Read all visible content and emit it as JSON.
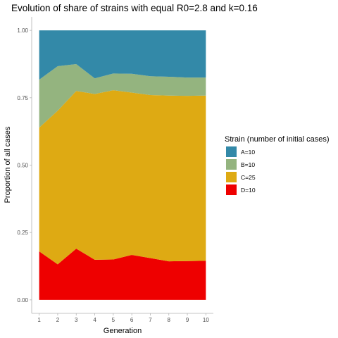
{
  "chart_data": {
    "type": "area",
    "stacked": true,
    "normalized": true,
    "title": "Evolution of share of strains with equal R0=2.8 and k=0.16",
    "xlabel": "Generation",
    "ylabel": "Proportion of all cases",
    "x": [
      1,
      2,
      3,
      4,
      5,
      6,
      7,
      8,
      9,
      10
    ],
    "xlim": [
      1,
      10
    ],
    "ylim": [
      0,
      1
    ],
    "y_ticks": [
      "0.00",
      "0.25",
      "0.50",
      "0.75",
      "1.00"
    ],
    "x_ticks": [
      "1",
      "2",
      "3",
      "4",
      "5",
      "6",
      "7",
      "8",
      "9",
      "10"
    ],
    "grid": false,
    "legend": {
      "title": "Strain (number of initial cases)",
      "position": "right"
    },
    "series": [
      {
        "name": "A=10",
        "color": "#3389a8",
        "values": [
          0.183,
          0.133,
          0.125,
          0.178,
          0.16,
          0.161,
          0.17,
          0.172,
          0.175,
          0.175
        ]
      },
      {
        "name": "B=10",
        "color": "#94b47f",
        "values": [
          0.178,
          0.165,
          0.1,
          0.058,
          0.062,
          0.07,
          0.07,
          0.07,
          0.068,
          0.067
        ]
      },
      {
        "name": "C=25",
        "color": "#deaa13",
        "values": [
          0.459,
          0.57,
          0.585,
          0.615,
          0.628,
          0.602,
          0.605,
          0.615,
          0.613,
          0.613
        ]
      },
      {
        "name": "D=10",
        "color": "#ee0000",
        "values": [
          0.18,
          0.132,
          0.19,
          0.149,
          0.15,
          0.167,
          0.155,
          0.143,
          0.144,
          0.145
        ]
      }
    ]
  }
}
